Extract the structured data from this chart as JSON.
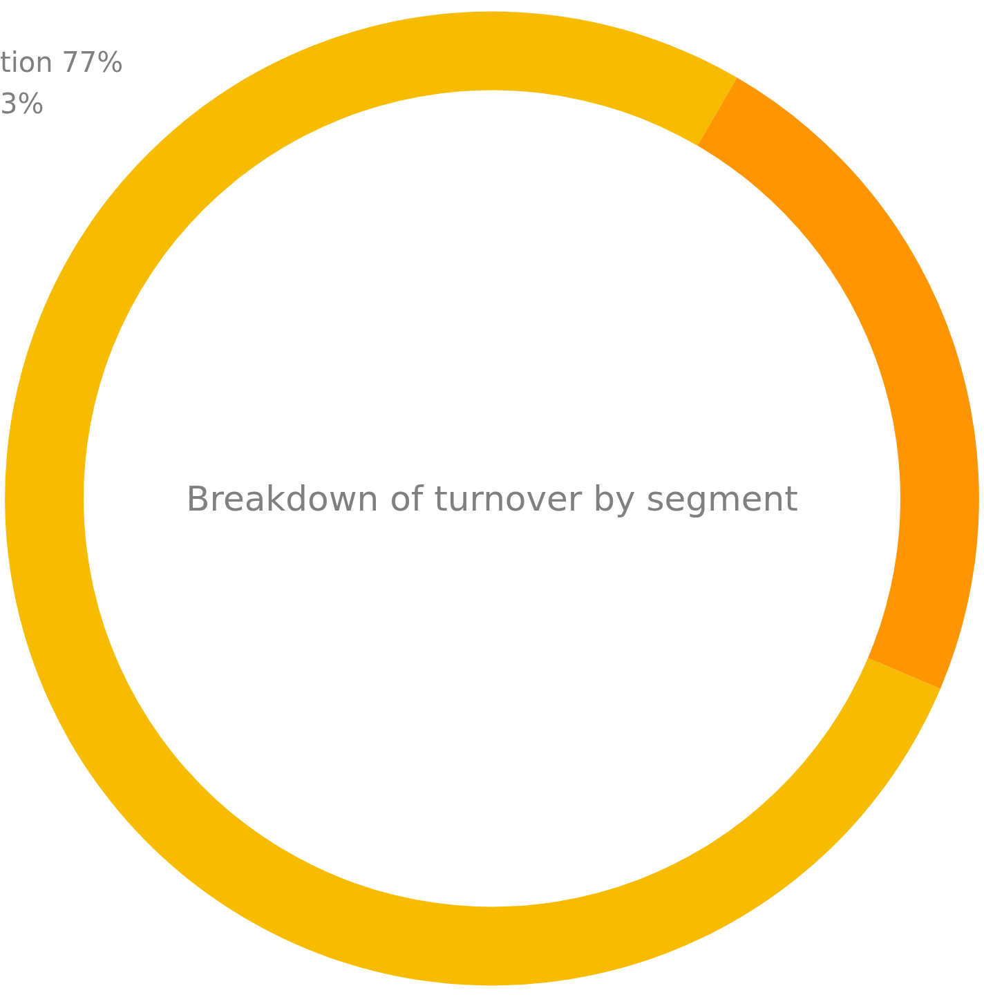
{
  "chart_data": {
    "type": "donut",
    "title": "Breakdown of turnover by segment",
    "categories": [
      null,
      null
    ],
    "values": [
      77,
      23
    ],
    "colors": [
      "#f7bb00",
      "#ff9500"
    ],
    "annotations": [
      "tion 77%",
      "3%"
    ]
  }
}
